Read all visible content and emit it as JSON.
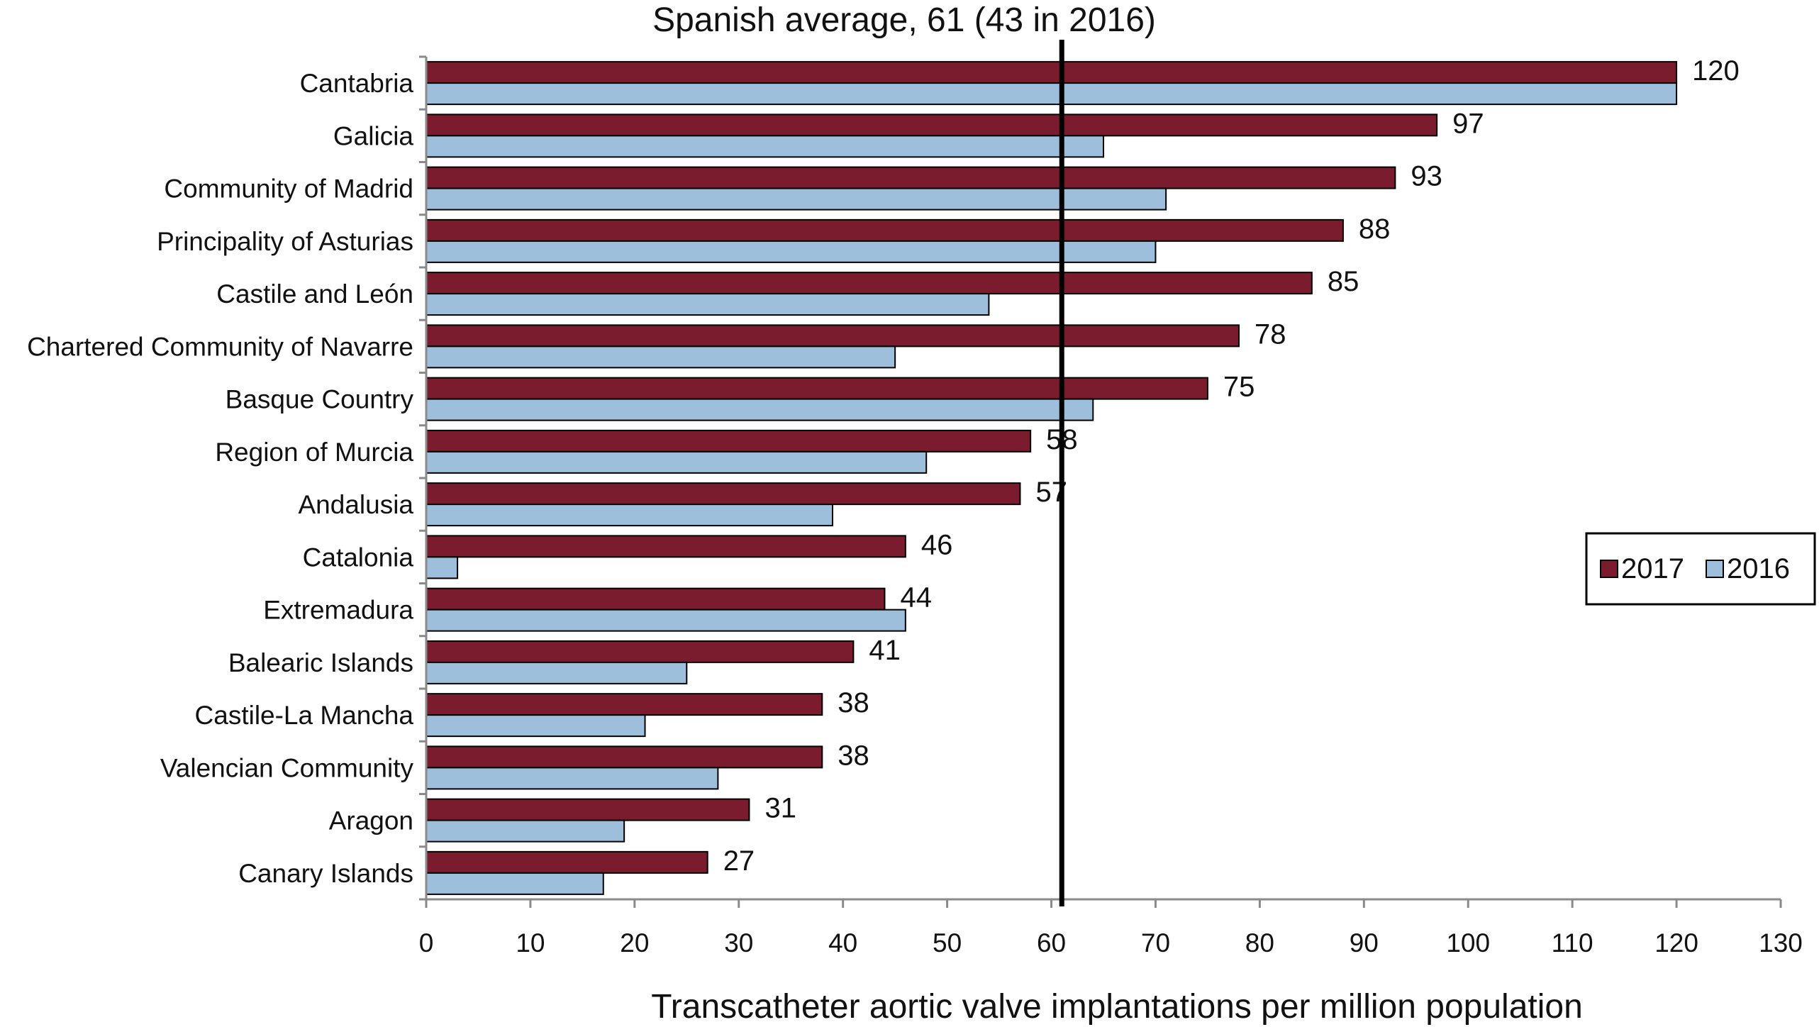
{
  "chart_data": {
    "type": "bar",
    "orientation": "horizontal",
    "title": "Spanish average, 61 (43 in 2016)",
    "xlabel": "Transcatheter aortic valve implantations per million population",
    "ylabel": "",
    "xlim": [
      0,
      130
    ],
    "xticks": [
      "0",
      "10",
      "20",
      "30",
      "40",
      "50",
      "60",
      "70",
      "80",
      "90",
      "100",
      "110",
      "120",
      "130"
    ],
    "reference_line": {
      "value": 61
    },
    "legend_position": "right",
    "categories": [
      "Cantabria",
      "Galicia",
      "Community of Madrid",
      "Principality of Asturias",
      "Castile and León",
      "Chartered Community of Navarre",
      "Basque Country",
      "Region of Murcia",
      "Andalusia",
      "Catalonia",
      "Extremadura",
      "Balearic Islands",
      "Castile-La Mancha",
      "Valencian Community",
      "Aragon",
      "Canary Islands"
    ],
    "series": [
      {
        "name": "2017",
        "color": "#7b1c2e",
        "values": [
          120,
          97,
          93,
          88,
          85,
          78,
          75,
          58,
          57,
          46,
          44,
          41,
          38,
          38,
          31,
          27
        ],
        "labels": [
          "120",
          "97",
          "93",
          "88",
          "85",
          "78",
          "75",
          "58",
          "57",
          "46",
          "44",
          "41",
          "38",
          "38",
          "31",
          "27"
        ]
      },
      {
        "name": "2016",
        "color": "#9dbfdc",
        "values": [
          120,
          65,
          71,
          70,
          54,
          45,
          64,
          48,
          39,
          3,
          46,
          25,
          21,
          28,
          19,
          17
        ]
      }
    ]
  }
}
